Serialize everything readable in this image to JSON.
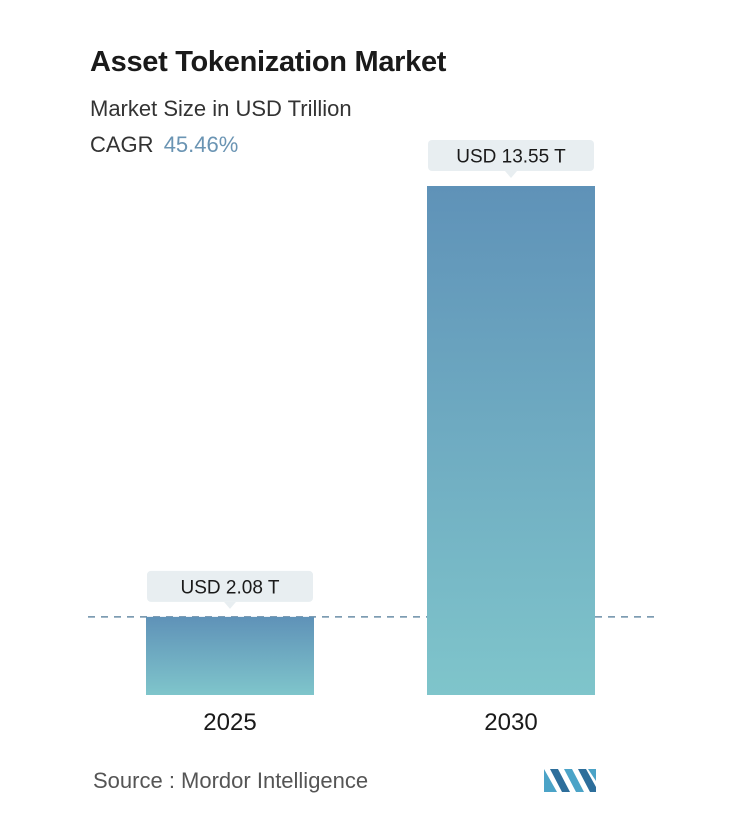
{
  "header": {
    "title": "Asset Tokenization Market",
    "subtitle": "Market Size in USD Trillion",
    "cagr_label": "CAGR",
    "cagr_value": "45.46%"
  },
  "colors": {
    "bar_top": "#5f92b8",
    "bar_bottom": "#7fc5cb",
    "label_bg": "#e8eef1",
    "dashed_line": "#6b8ea8",
    "accent": "#6a94b3"
  },
  "chart_data": {
    "type": "bar",
    "categories": [
      "2025",
      "2030"
    ],
    "values": [
      2.08,
      13.55
    ],
    "data_labels": [
      "USD 2.08 T",
      "USD 13.55 T"
    ],
    "title": "Asset Tokenization Market",
    "subtitle": "Market Size in USD Trillion",
    "xlabel": "",
    "ylabel": "",
    "ylim": [
      0,
      13.55
    ],
    "grid": false,
    "reference_line": {
      "value": 2.08,
      "style": "dashed"
    }
  },
  "footer": {
    "source": "Source :  Mordor Intelligence",
    "logo_icon": "mordor-intelligence-logo-icon"
  }
}
